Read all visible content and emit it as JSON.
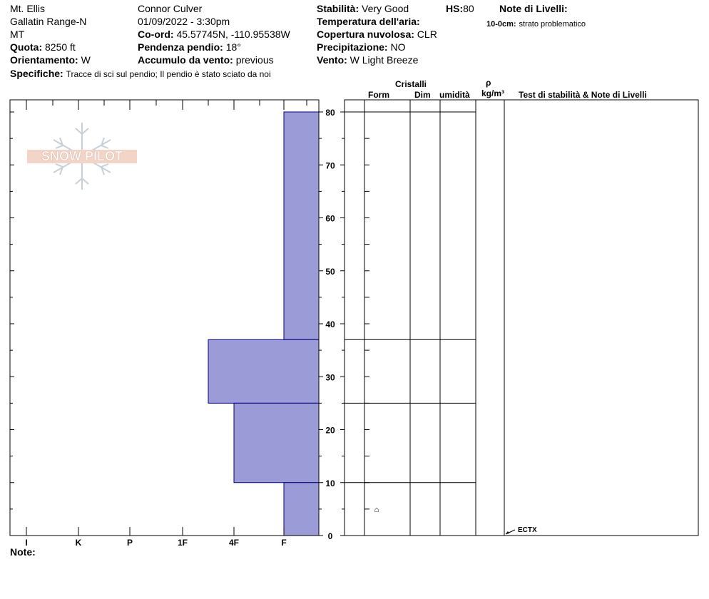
{
  "header": {
    "location": "Mt. Ellis",
    "range": "Gallatin Range-N",
    "state": "MT",
    "elevation_label": "Quota:",
    "elevation_value": "8250 ft",
    "aspect_label": "Orientamento:",
    "aspect_value": "W",
    "observer": "Connor Culver",
    "datetime": "01/09/2022 - 3:30pm",
    "coord_label": "Co-ord:",
    "coord_value": "45.57745N, -110.95538W",
    "slope_label": "Pendenza pendio:",
    "slope_value": "18°",
    "wind_loading_label": "Accumulo da vento:",
    "wind_loading_value": "previous",
    "stability_label": "Stabilità:",
    "stability_value": "Very Good",
    "hs_label": "HS:",
    "hs_value": "80",
    "air_temp_label": "Temperatura dell'aria:",
    "cloud_label": "Copertura nuvolosa:",
    "cloud_value": "CLR",
    "precip_label": "Precipitazione:",
    "precip_value": "NO",
    "wind_label": "Vento:",
    "wind_value": "W Light Breeze",
    "layer_notes_label": "Note di Livelli:",
    "layer_note_depth": "10-0cm:",
    "layer_note_text": "strato problematico",
    "specifics_label": "Specifiche:",
    "specifics_value": "Tracce di sci sul pendio;  Il pendio è stato sciato da noi"
  },
  "columns": {
    "crystals": "Cristalli",
    "form": "Form",
    "dim": "Dim",
    "moisture": "umidità",
    "rho": "ρ",
    "density_unit": "kg/m³",
    "tests": "Test di stabilità & Note di Livelli"
  },
  "note_label": "Note:",
  "logo_text": "SNOW PILOT",
  "chart_data": {
    "type": "bar",
    "orientation": "horizontal-step",
    "y_axis": {
      "label": "",
      "range": [
        0,
        80
      ],
      "ticks": [
        0,
        10,
        20,
        30,
        40,
        50,
        60,
        70,
        80
      ]
    },
    "x_axis": {
      "label": "",
      "categories": [
        "I",
        "K",
        "P",
        "1F",
        "4F",
        "F"
      ]
    },
    "hardness_layers": [
      {
        "top": 80,
        "bottom": 37,
        "hardness": "F"
      },
      {
        "top": 37,
        "bottom": 25,
        "hardness": "1F-4F"
      },
      {
        "top": 25,
        "bottom": 10,
        "hardness": "4F"
      },
      {
        "top": 10,
        "bottom": 0,
        "hardness": "F"
      }
    ],
    "layer_boundaries": [
      80,
      37,
      25,
      10
    ],
    "grain_symbols": [
      {
        "height": 5,
        "symbol": "⌂"
      }
    ],
    "stability_tests": [
      {
        "height": 0,
        "label": "ECTX"
      }
    ],
    "bar_color": "#9b9bd7",
    "bar_stroke": "#000080"
  }
}
